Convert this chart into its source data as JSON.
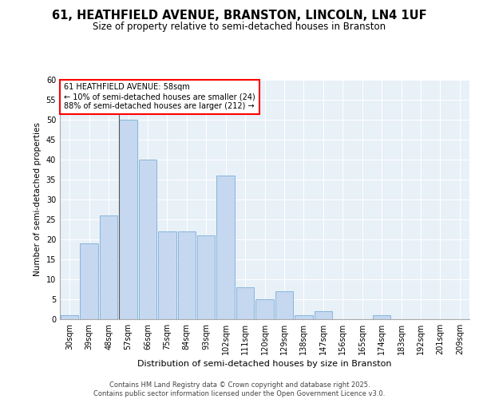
{
  "title1": "61, HEATHFIELD AVENUE, BRANSTON, LINCOLN, LN4 1UF",
  "title2": "Size of property relative to semi-detached houses in Branston",
  "xlabel": "Distribution of semi-detached houses by size in Branston",
  "ylabel": "Number of semi-detached properties",
  "categories": [
    "30sqm",
    "39sqm",
    "48sqm",
    "57sqm",
    "66sqm",
    "75sqm",
    "84sqm",
    "93sqm",
    "102sqm",
    "111sqm",
    "120sqm",
    "129sqm",
    "138sqm",
    "147sqm",
    "156sqm",
    "165sqm",
    "174sqm",
    "183sqm",
    "192sqm",
    "201sqm",
    "209sqm"
  ],
  "values": [
    1,
    19,
    26,
    50,
    40,
    22,
    22,
    21,
    36,
    8,
    5,
    7,
    1,
    2,
    0,
    0,
    1,
    0,
    0,
    0,
    0
  ],
  "bar_color": "#c5d8f0",
  "bar_edge_color": "#7aaed6",
  "background_color": "#e8f0f8",
  "grid_color": "#ffffff",
  "annotation_text": "61 HEATHFIELD AVENUE: 58sqm\n← 10% of semi-detached houses are smaller (24)\n88% of semi-detached houses are larger (212) →",
  "footer_text": "Contains HM Land Registry data © Crown copyright and database right 2025.\nContains public sector information licensed under the Open Government Licence v3.0.",
  "ylim": [
    0,
    60
  ],
  "yticks": [
    0,
    5,
    10,
    15,
    20,
    25,
    30,
    35,
    40,
    45,
    50,
    55,
    60
  ],
  "title1_fontsize": 10.5,
  "title2_fontsize": 8.5,
  "ylabel_fontsize": 7.5,
  "xlabel_fontsize": 8,
  "tick_fontsize": 7,
  "footer_fontsize": 6,
  "annot_fontsize": 7
}
